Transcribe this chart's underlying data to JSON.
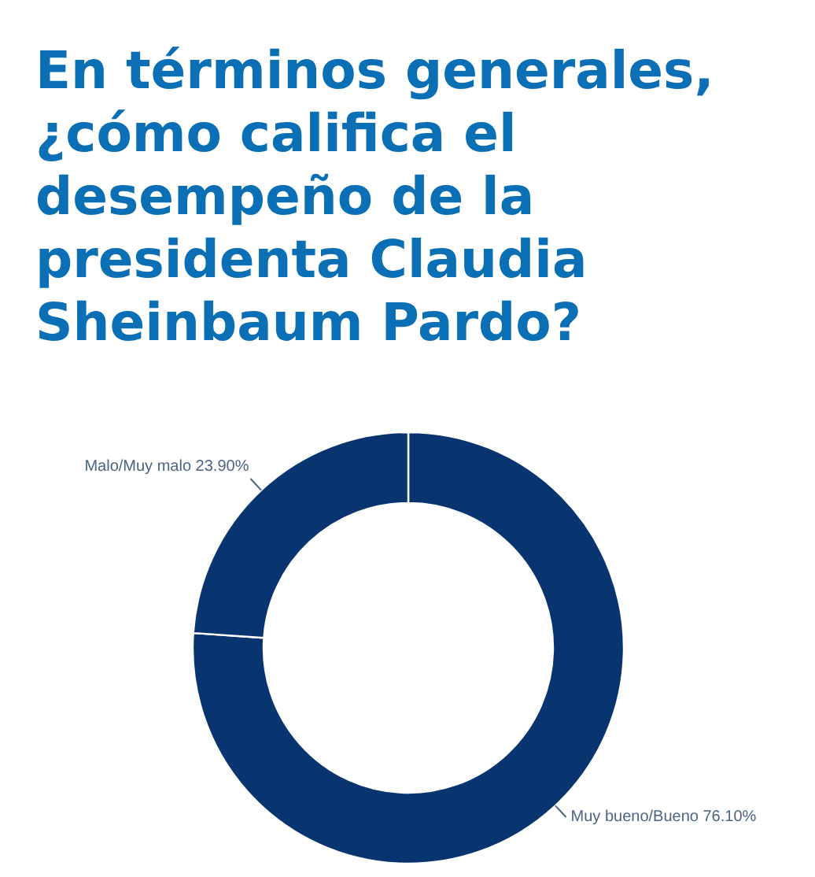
{
  "chart_data": {
    "type": "donut",
    "title": "En términos generales, ¿cómo califica el desempeño de la presidenta Claudia Sheinbaum Pardo?",
    "categories": [
      "Muy bueno/Bueno",
      "Malo/Muy malo"
    ],
    "values": [
      76.1,
      23.9
    ],
    "colors": [
      "#08356f",
      "#08356f"
    ],
    "value_labels": [
      "76.10%",
      "23.90%"
    ]
  }
}
